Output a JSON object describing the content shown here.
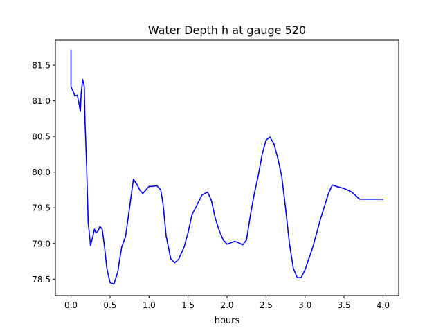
{
  "chart_data": {
    "type": "line",
    "title": "Water Depth h at gauge 520",
    "xlabel": "hours",
    "ylabel": "",
    "xlim": [
      -0.2,
      4.2
    ],
    "ylim": [
      78.27,
      81.85
    ],
    "xticks": [
      0.0,
      0.5,
      1.0,
      1.5,
      2.0,
      2.5,
      3.0,
      3.5,
      4.0
    ],
    "xtick_labels": [
      "0.0",
      "0.5",
      "1.0",
      "1.5",
      "2.0",
      "2.5",
      "3.0",
      "3.5",
      "4.0"
    ],
    "yticks": [
      78.5,
      79.0,
      79.5,
      80.0,
      80.5,
      81.0,
      81.5
    ],
    "ytick_labels": [
      "78.5",
      "79.0",
      "79.5",
      "80.0",
      "80.5",
      "81.0",
      "81.5"
    ],
    "grid": false,
    "series": [
      {
        "color": "#0000ff",
        "x": [
          0.0,
          0.0,
          0.0,
          0.02,
          0.05,
          0.08,
          0.1,
          0.12,
          0.13,
          0.15,
          0.17,
          0.18,
          0.2,
          0.22,
          0.25,
          0.28,
          0.3,
          0.32,
          0.35,
          0.37,
          0.4,
          0.43,
          0.46,
          0.5,
          0.55,
          0.6,
          0.62,
          0.65,
          0.7,
          0.75,
          0.8,
          0.85,
          0.88,
          0.92,
          0.96,
          1.0,
          1.05,
          1.1,
          1.15,
          1.18,
          1.22,
          1.28,
          1.33,
          1.38,
          1.45,
          1.5,
          1.55,
          1.62,
          1.68,
          1.75,
          1.8,
          1.85,
          1.9,
          1.95,
          2.0,
          2.1,
          2.15,
          2.2,
          2.25,
          2.3,
          2.35,
          2.4,
          2.45,
          2.5,
          2.55,
          2.6,
          2.65,
          2.7,
          2.75,
          2.8,
          2.85,
          2.9,
          2.95,
          3.0,
          3.1,
          3.2,
          3.3,
          3.35,
          3.4,
          3.5,
          3.6,
          3.7,
          3.78,
          3.85,
          3.9,
          3.95,
          4.0
        ],
        "y": [
          81.71,
          81.55,
          81.2,
          81.15,
          81.07,
          81.08,
          80.98,
          80.85,
          81.1,
          81.3,
          81.2,
          80.7,
          80.1,
          79.3,
          78.97,
          79.1,
          79.2,
          79.15,
          79.18,
          79.24,
          79.2,
          78.95,
          78.65,
          78.45,
          78.43,
          78.6,
          78.75,
          78.95,
          79.1,
          79.5,
          79.9,
          79.82,
          79.75,
          79.7,
          79.75,
          79.8,
          79.8,
          79.81,
          79.75,
          79.55,
          79.1,
          78.78,
          78.73,
          78.78,
          78.95,
          79.15,
          79.4,
          79.55,
          79.68,
          79.72,
          79.6,
          79.35,
          79.18,
          79.05,
          78.99,
          79.03,
          79.01,
          78.98,
          79.05,
          79.4,
          79.7,
          79.95,
          80.25,
          80.45,
          80.49,
          80.4,
          80.2,
          79.95,
          79.5,
          79.0,
          78.65,
          78.52,
          78.52,
          78.63,
          78.95,
          79.35,
          79.7,
          79.82,
          79.8,
          79.77,
          79.72,
          79.62,
          79.62,
          79.62,
          79.62,
          79.62,
          79.62
        ]
      }
    ]
  }
}
